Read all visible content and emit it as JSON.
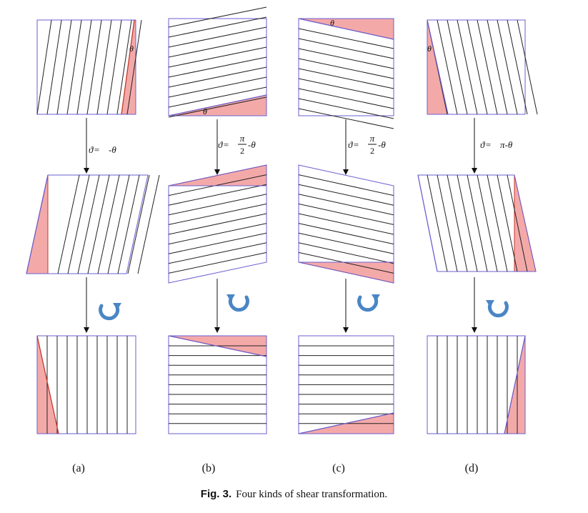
{
  "figure": {
    "caption_label": "Fig. 3.",
    "caption_text": "Four kinds of shear transformation."
  },
  "theta": "θ",
  "panels": [
    {
      "id": "a",
      "label": "(a)",
      "formula": [
        "ϑ",
        " = ",
        "-θ"
      ]
    },
    {
      "id": "b",
      "label": "(b)",
      "formula": [
        "ϑ",
        " = ",
        "π/2",
        "-θ"
      ]
    },
    {
      "id": "c",
      "label": "(c)",
      "formula": [
        "ϑ",
        " = ",
        "π/2",
        "-θ"
      ]
    },
    {
      "id": "d",
      "label": "(d)",
      "formula": [
        "ϑ",
        " = ",
        "π-θ"
      ]
    }
  ],
  "colors": {
    "frame": "#6a5fd0",
    "hatch": "#222222",
    "triangle_fill": "#f4a9a9",
    "triangle_edge": "#c0392b",
    "arrow": "#111111",
    "rotate_arrow": "#4a86c5"
  }
}
